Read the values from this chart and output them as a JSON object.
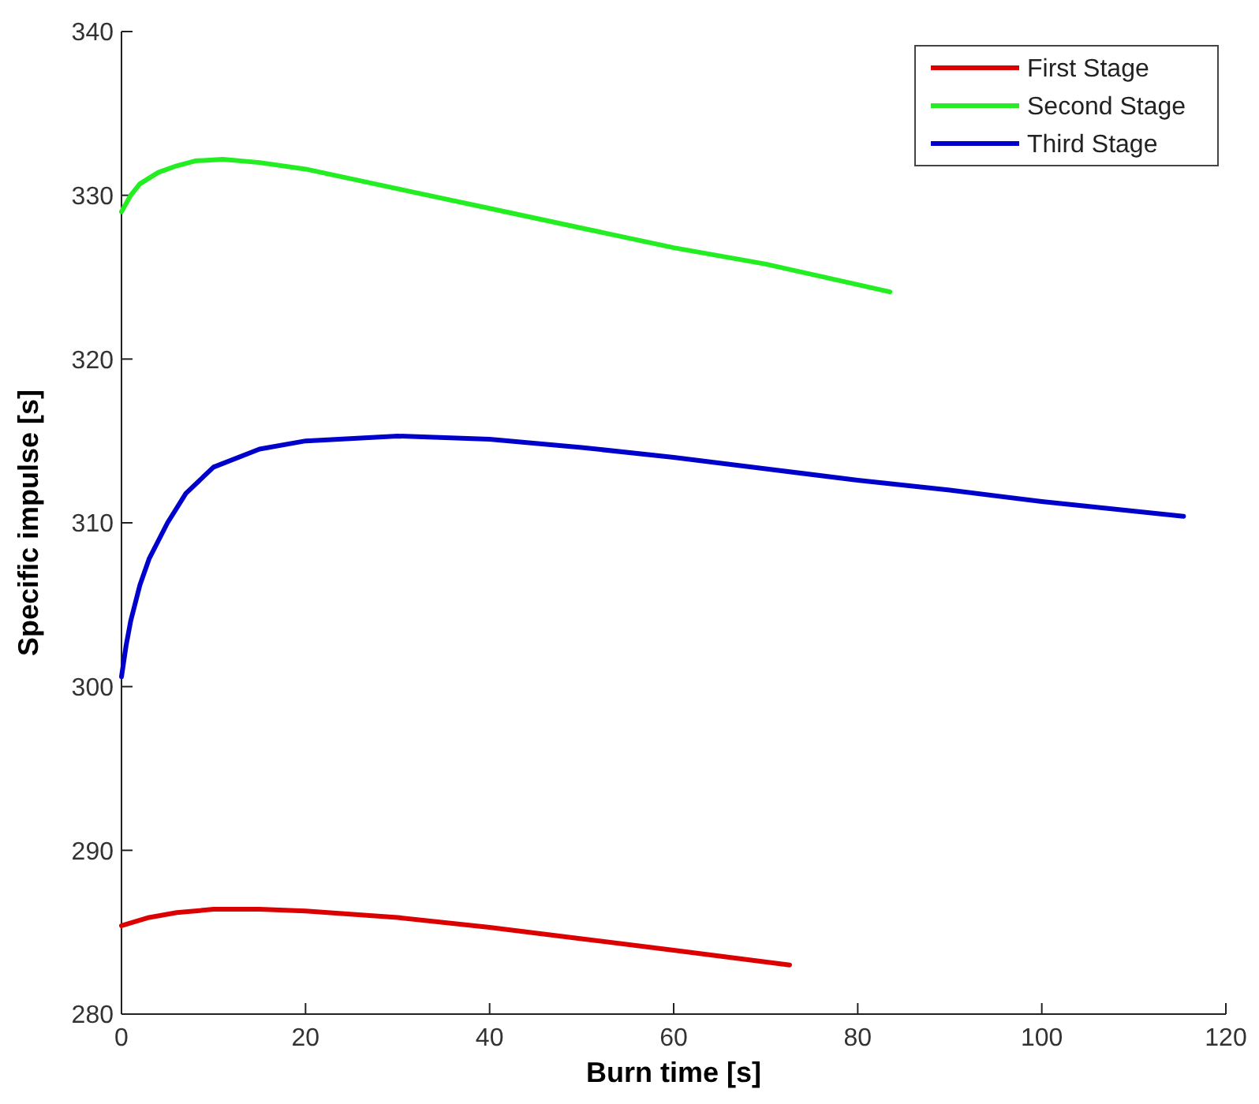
{
  "chart_data": {
    "type": "line",
    "xlabel": "Burn time [s]",
    "ylabel": "Specific impulse [s]",
    "xlim": [
      0,
      120
    ],
    "xticks": [
      0,
      20,
      40,
      60,
      80,
      100,
      120
    ],
    "ylim": [
      280,
      340
    ],
    "yticks": [
      280,
      290,
      300,
      310,
      320,
      330,
      340
    ],
    "legend": "top right",
    "grid": false,
    "line_style": "solid",
    "series": [
      {
        "name": "First Stage",
        "color": "#dd0000",
        "x": [
          0,
          3,
          6,
          10,
          15,
          20,
          30,
          40,
          50,
          60,
          72.6
        ],
        "values": [
          285.4,
          285.9,
          286.2,
          286.4,
          286.4,
          286.3,
          285.9,
          285.3,
          284.6,
          283.9,
          283.0
        ]
      },
      {
        "name": "Second Stage",
        "color": "#22ee22",
        "x": [
          0,
          1,
          2,
          4,
          6,
          8,
          11,
          15,
          20,
          30,
          40,
          50,
          60,
          70,
          83.5
        ],
        "values": [
          329.0,
          330.0,
          330.7,
          331.4,
          331.8,
          332.1,
          332.2,
          332.0,
          331.6,
          330.4,
          329.2,
          328.0,
          326.8,
          325.8,
          324.1
        ]
      },
      {
        "name": "Third Stage",
        "color": "#0000cc",
        "x": [
          0,
          0.5,
          1,
          2,
          3,
          5,
          7,
          10,
          15,
          20,
          30,
          40,
          50,
          60,
          70,
          80,
          90,
          100,
          115.4
        ],
        "values": [
          300.6,
          302.5,
          304.0,
          306.2,
          307.8,
          310.0,
          311.8,
          313.4,
          314.5,
          315.0,
          315.3,
          315.1,
          314.6,
          314.0,
          313.3,
          312.6,
          312.0,
          311.3,
          310.4
        ]
      }
    ]
  }
}
